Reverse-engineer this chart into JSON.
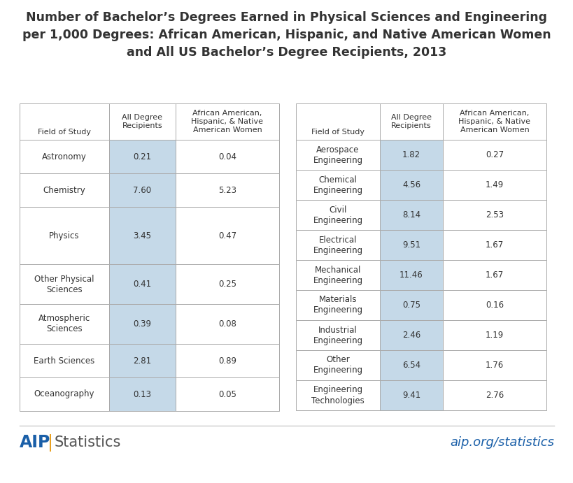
{
  "title": "Number of Bachelor’s Degrees Earned in Physical Sciences and Engineering\nper 1,000 Degrees: African American, Hispanic, and Native American Women\nand All US Bachelor’s Degree Recipients, 2013",
  "title_fontsize": 12.5,
  "background_color": "#ffffff",
  "left_table": {
    "headers": [
      "Field of Study",
      "All Degree\nRecipients",
      "African American,\nHispanic, & Native\nAmerican Women"
    ],
    "rows": [
      [
        "Astronomy",
        "0.21",
        "0.04"
      ],
      [
        "Chemistry",
        "7.60",
        "5.23"
      ],
      [
        "Physics",
        "3.45",
        "0.47"
      ],
      [
        "Other Physical\nSciences",
        "0.41",
        "0.25"
      ],
      [
        "Atmospheric\nSciences",
        "0.39",
        "0.08"
      ],
      [
        "Earth Sciences",
        "2.81",
        "0.89"
      ],
      [
        "Oceanography",
        "0.13",
        "0.05"
      ]
    ]
  },
  "right_table": {
    "headers": [
      "Field of Study",
      "All Degree\nRecipients",
      "African American,\nHispanic, & Native\nAmerican Women"
    ],
    "rows": [
      [
        "Aerospace\nEngineering",
        "1.82",
        "0.27"
      ],
      [
        "Chemical\nEngineering",
        "4.56",
        "1.49"
      ],
      [
        "Civil\nEngineering",
        "8.14",
        "2.53"
      ],
      [
        "Electrical\nEngineering",
        "9.51",
        "1.67"
      ],
      [
        "Mechanical\nEngineering",
        "11.46",
        "1.67"
      ],
      [
        "Materials\nEngineering",
        "0.75",
        "0.16"
      ],
      [
        "Industrial\nEngineering",
        "2.46",
        "1.19"
      ],
      [
        "Other\nEngineering",
        "6.54",
        "1.76"
      ],
      [
        "Engineering\nTechnologies",
        "9.41",
        "2.76"
      ]
    ]
  },
  "shade_color": "#c5d9e8",
  "border_color": "#aaaaaa",
  "text_color": "#333333",
  "header_fontsize": 8.0,
  "cell_fontsize": 8.5,
  "footer_line_color": "#cccccc",
  "footer_aip_color": "#1a5fa8",
  "footer_pipe_color": "#e8a020",
  "footer_stat_color": "#555555",
  "footer_right_color": "#1a5fa8",
  "footer_right": "aip.org/statistics"
}
